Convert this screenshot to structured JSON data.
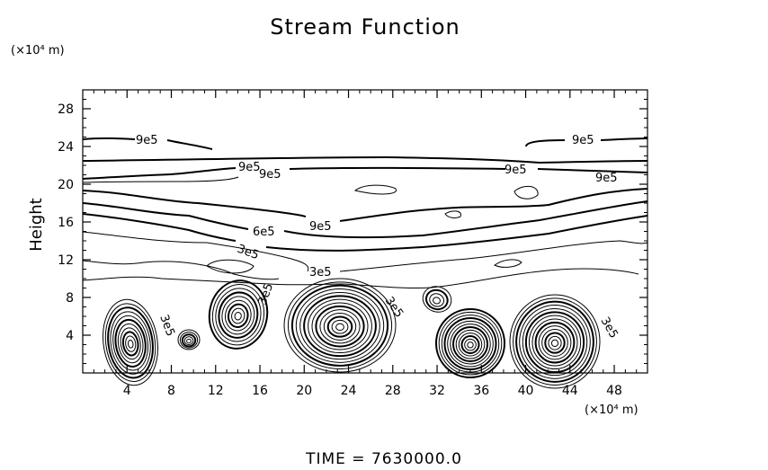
{
  "chart_data": {
    "type": "contour",
    "title": "Stream Function",
    "ylabel": "Height",
    "y_unit_label": "(×10⁴ m)",
    "x_unit_label": "(×10⁴ m)",
    "xlim": [
      0,
      51
    ],
    "ylim": [
      0,
      30
    ],
    "xticks": [
      "4",
      "8",
      "12",
      "16",
      "20",
      "24",
      "28",
      "32",
      "36",
      "40",
      "44",
      "48"
    ],
    "yticks": [
      "4",
      "8",
      "12",
      "16",
      "20",
      "24",
      "28"
    ],
    "contour_labels": [
      "9e5",
      "9e5",
      "9e5",
      "9e5",
      "9e5",
      "9e5",
      "9e5",
      "6e5",
      "3e5",
      "3e5",
      "3e5",
      "3e5",
      "3e5",
      "3e5"
    ],
    "time_label": "TIME = 7630000.0",
    "grid": false
  }
}
